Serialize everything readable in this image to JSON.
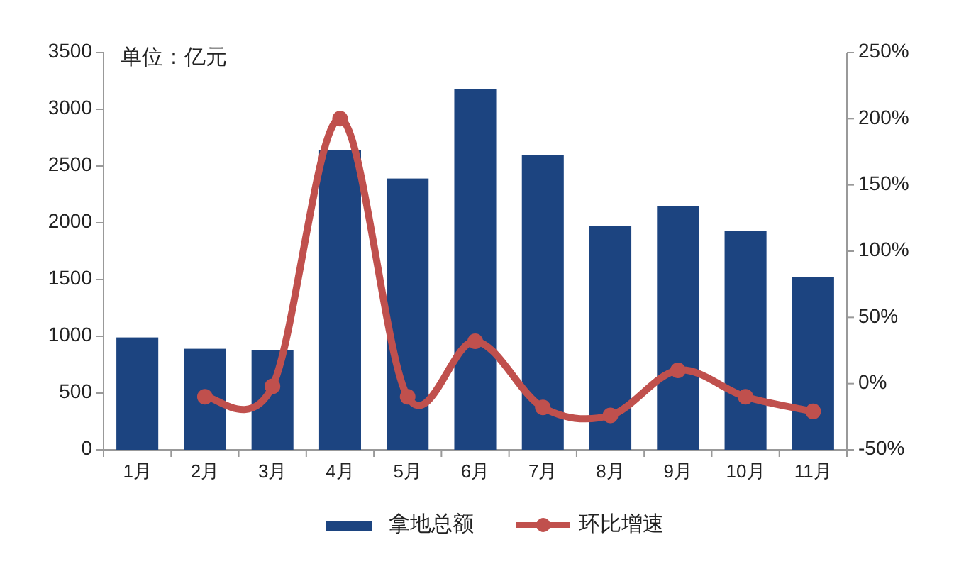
{
  "chart_data": {
    "type": "bar",
    "annotations": [
      "单位：亿元"
    ],
    "categories": [
      "1月",
      "2月",
      "3月",
      "4月",
      "5月",
      "6月",
      "7月",
      "8月",
      "9月",
      "10月",
      "11月"
    ],
    "series": [
      {
        "name": "拿地总额",
        "color": "#1c4480",
        "values": [
          990,
          890,
          880,
          2640,
          2390,
          3180,
          2600,
          1970,
          2150,
          1930,
          1520
        ]
      },
      {
        "name": "环比增速",
        "type": "line",
        "axis": "y2",
        "color": "#c0504d",
        "values": [
          null,
          -10,
          -2,
          200,
          -10,
          32,
          -18,
          -24,
          10,
          -10,
          -21
        ]
      }
    ],
    "ylim": [
      0,
      3500
    ],
    "yticks": [
      0,
      500,
      1000,
      1500,
      2000,
      2500,
      3000,
      3500
    ],
    "y2lim": [
      -50,
      250
    ],
    "y2ticks": [
      {
        "value": -50,
        "label": "-50%"
      },
      {
        "value": 0,
        "label": "0%"
      },
      {
        "value": 50,
        "label": "50%"
      },
      {
        "value": 100,
        "label": "100%"
      },
      {
        "value": 150,
        "label": "150%"
      },
      {
        "value": 200,
        "label": "200%"
      },
      {
        "value": 250,
        "label": "250%"
      }
    ],
    "grid": false,
    "legend": "bottom",
    "marker": "circle",
    "line_style": "solid"
  }
}
